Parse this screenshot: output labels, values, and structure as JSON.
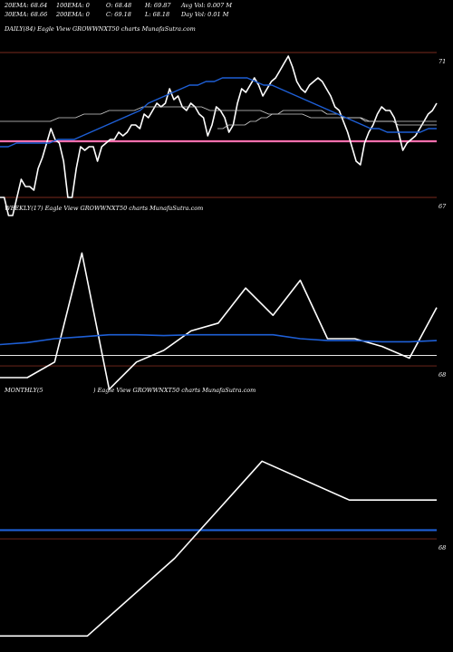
{
  "header": {
    "stats": {
      "ema20": "20EMA: 68.64",
      "ema100": "100EMA: 0",
      "open": "O: 68.48",
      "high": "H: 69.87",
      "avg_vol": "Avg Vol: 0.007 M",
      "ema30": "30EMA: 68.66",
      "ema200": "200EMA: 0",
      "close": "C: 69.18",
      "low": "L: 68.18",
      "day_vol": "Day Vol: 0.01 M"
    }
  },
  "panels": {
    "daily": {
      "label": "DAILY(84) Eagle  View  GROWWNXT50  charts MunafaSutra.com"
    },
    "weekly": {
      "label": "WEEKLY(17) Eagle  View  GROWWNXT50  charts MunafaSutra.com"
    },
    "monthly": {
      "label_left": "MONTHLY(5",
      "label_right": ") Eagle  View  GROWWNXT50  charts MunafaSutra.com"
    }
  },
  "colors": {
    "background": "#000000",
    "price": "#ffffff",
    "ema_blue": "#1e5fd6",
    "ema_gray": "#cfcfcf",
    "hline_brown": "#7a2a1e",
    "hline_pink": "#ff6fae",
    "hline_white": "#e8e8e8"
  },
  "chart_data": [
    {
      "type": "line",
      "title": "DAILY(84)",
      "ylim": [
        66.8,
        71.2
      ],
      "y_ticks": [
        71,
        67
      ],
      "hlines": [
        {
          "y": 71.0,
          "color": "brown"
        },
        {
          "y": 68.55,
          "color": "pink"
        },
        {
          "y": 67.0,
          "color": "brown"
        }
      ],
      "series": [
        {
          "values": [
            67.0,
            67.0,
            66.5,
            66.5,
            67.0,
            67.5,
            67.3,
            67.3,
            67.2,
            67.8,
            68.1,
            68.5,
            68.9,
            68.6,
            68.5,
            68.0,
            67.0,
            67.0,
            67.8,
            68.4,
            68.3,
            68.4,
            68.4,
            68.0,
            68.4,
            68.5,
            68.6,
            68.6,
            68.8,
            68.7,
            68.8,
            69.0,
            69.0,
            68.9,
            69.3,
            69.2,
            69.4,
            69.6,
            69.5,
            69.6,
            70.0,
            69.7,
            69.8,
            69.5,
            69.4,
            69.6,
            69.5,
            69.3,
            69.2,
            68.7,
            69.0,
            69.5,
            69.4,
            69.2,
            68.8,
            69.0,
            69.6,
            70.0,
            69.9,
            70.1,
            70.3,
            70.1,
            69.8,
            70.0,
            70.2,
            70.3,
            70.5,
            70.7,
            70.9,
            70.6,
            70.2,
            70.0,
            69.9,
            70.1,
            70.2,
            70.3,
            70.2,
            70.0,
            69.8,
            69.5,
            69.4,
            69.1,
            68.8,
            68.4,
            68.0,
            67.9,
            68.5,
            68.8,
            69.0,
            69.3,
            69.5,
            69.4,
            69.4,
            69.2,
            68.8,
            68.3,
            68.5,
            68.6,
            68.7,
            68.9,
            69.1,
            69.3,
            69.4,
            69.6
          ]
        },
        {
          "values": [
            69.1,
            69.1,
            69.1,
            69.1,
            69.1,
            69.1,
            69.1,
            69.2,
            69.2,
            69.2,
            69.3,
            69.3,
            69.3,
            69.4,
            69.4,
            69.4,
            69.4,
            69.5,
            69.5,
            69.5,
            69.5,
            69.5,
            69.5,
            69.5,
            69.5,
            69.4,
            69.4,
            69.4,
            69.4,
            69.4,
            69.4,
            69.4,
            69.3,
            69.3,
            69.3,
            69.3,
            69.3,
            69.2,
            69.2,
            69.2,
            69.2,
            69.2,
            69.2,
            69.2,
            69.1,
            69.1,
            69.1,
            69.1,
            69.1,
            69.1,
            69.1,
            69.1,
            69.1
          ]
        },
        {
          "values": [
            68.9,
            68.9,
            69.0,
            69.0,
            69.0,
            69.0,
            69.1,
            69.1,
            69.2,
            69.2,
            69.3,
            69.3,
            69.4,
            69.4,
            69.4,
            69.4,
            69.4,
            69.4,
            69.4,
            69.4,
            69.3,
            69.3,
            69.3,
            69.2,
            69.2,
            69.2,
            69.2,
            69.1,
            69.1,
            69.1,
            69.1,
            69.1,
            69.1,
            69.0,
            69.0,
            69.0,
            69.0,
            69.0,
            69.0,
            69.0,
            69.0
          ]
        },
        {
          "values": [
            68.4,
            68.4,
            68.5,
            68.5,
            68.5,
            68.5,
            68.5,
            68.6,
            68.6,
            68.6,
            68.7,
            68.8,
            68.9,
            69.0,
            69.1,
            69.2,
            69.3,
            69.4,
            69.6,
            69.7,
            69.8,
            69.9,
            70.0,
            70.1,
            70.1,
            70.2,
            70.2,
            70.3,
            70.3,
            70.3,
            70.3,
            70.2,
            70.1,
            70.1,
            70.0,
            69.9,
            69.8,
            69.7,
            69.6,
            69.5,
            69.4,
            69.3,
            69.2,
            69.1,
            69.0,
            68.9,
            68.9,
            68.8,
            68.8,
            68.8,
            68.8,
            68.8,
            68.9,
            68.9
          ]
        }
      ]
    },
    {
      "type": "line",
      "title": "WEEKLY(17)",
      "ylim": [
        67.7,
        71.7
      ],
      "y_ticks": [
        68
      ],
      "hlines": [
        {
          "y": 68.27,
          "color": "white"
        },
        {
          "y": 68.0,
          "color": "brown"
        }
      ],
      "series": [
        {
          "values": [
            67.7,
            67.7,
            68.1,
            70.9,
            67.4,
            68.1,
            68.4,
            68.9,
            69.1,
            70.0,
            69.3,
            70.2,
            68.7,
            68.7,
            68.5,
            68.2,
            69.5
          ]
        },
        {
          "values": [
            68.55,
            68.6,
            68.7,
            68.75,
            68.8,
            68.8,
            68.78,
            68.8,
            68.8,
            68.8,
            68.8,
            68.7,
            68.65,
            68.65,
            68.62,
            68.62,
            68.65
          ]
        }
      ]
    },
    {
      "type": "line",
      "title": "MONTHLY(5",
      "ylim": [
        66.9,
        69.4
      ],
      "y_ticks": [
        68
      ],
      "hlines": [
        {
          "y": 68.09,
          "color": "blue"
        },
        {
          "y": 68.0,
          "color": "brown"
        }
      ],
      "series": [
        {
          "values": [
            67.0,
            67.0,
            67.8,
            68.8,
            68.4,
            68.4
          ]
        }
      ]
    }
  ]
}
